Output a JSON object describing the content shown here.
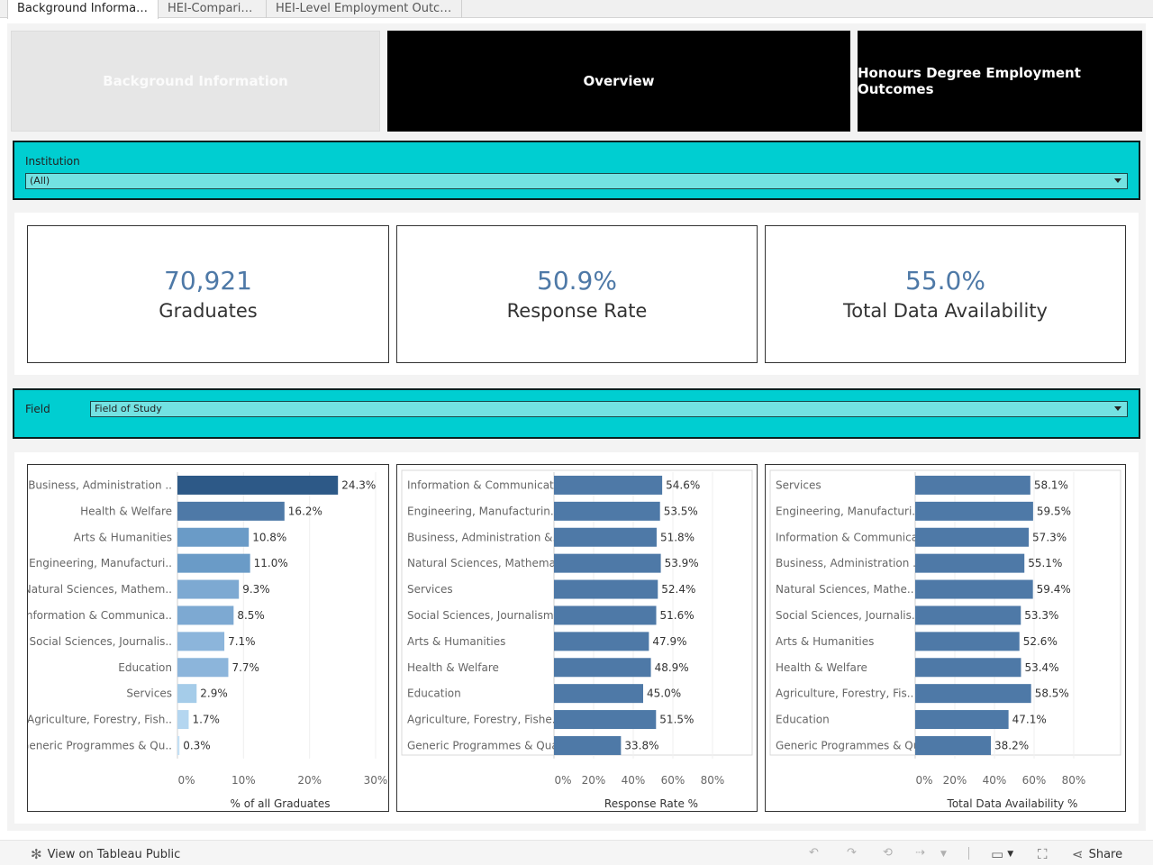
{
  "tabs": [
    {
      "label": "Background Information",
      "active": true
    },
    {
      "label": "HEI-Comparison",
      "active": false
    },
    {
      "label": "HEI-Level Employment Outco...",
      "active": false
    }
  ],
  "nav": {
    "background": "Background Information",
    "overview": "Overview",
    "honours": "Honours Degree Employment Outcomes"
  },
  "institution_filter": {
    "label": "Institution",
    "value": "(All)"
  },
  "kpis": {
    "graduates": {
      "value": "70,921",
      "label": "Graduates"
    },
    "response": {
      "value": "50.9%",
      "label": "Response Rate"
    },
    "availability": {
      "value": "55.0%",
      "label": "Total Data Availability"
    }
  },
  "field_filter": {
    "label": "Field",
    "value": "Field of Study"
  },
  "colors": {
    "teal": "#00ced1",
    "kpi_blue": "#4e79a7",
    "bar_blue": "#4e79a7"
  },
  "chart_data": [
    {
      "type": "bar",
      "orientation": "horizontal",
      "categories": [
        "Business, Administration ..",
        "Health & Welfare",
        "Arts & Humanities",
        "Engineering, Manufacturi..",
        "Natural Sciences, Mathem..",
        "Information & Communica..",
        "Social Sciences, Journalis..",
        "Education",
        "Services",
        "Agriculture, Forestry, Fish..",
        "Generic Programmes & Qu.."
      ],
      "values": [
        24.3,
        16.2,
        10.8,
        11.0,
        9.3,
        8.5,
        7.1,
        7.7,
        2.9,
        1.7,
        0.3
      ],
      "labels": [
        "24.3%",
        "16.2%",
        "10.8%",
        "11.0%",
        "9.3%",
        "8.5%",
        "7.1%",
        "7.7%",
        "2.9%",
        "1.7%",
        "0.3%"
      ],
      "xlabel": "% of all Graduates",
      "ticks": [
        "0%",
        "10%",
        "20%",
        "30%"
      ],
      "xlim": [
        0,
        30
      ],
      "color_by_value": true
    },
    {
      "type": "bar",
      "orientation": "horizontal",
      "categories": [
        "Information & Communicati..",
        "Engineering, Manufacturin..",
        "Business, Administration &..",
        "Natural Sciences, Mathema..",
        "Services",
        "Social Sciences, Journalism..",
        "Arts & Humanities",
        "Health & Welfare",
        "Education",
        "Agriculture, Forestry, Fishe..",
        "Generic Programmes & Qua.."
      ],
      "values": [
        54.6,
        53.5,
        51.8,
        53.9,
        52.4,
        51.6,
        47.9,
        48.9,
        45.0,
        51.5,
        33.8
      ],
      "labels": [
        "54.6%",
        "53.5%",
        "51.8%",
        "53.9%",
        "52.4%",
        "51.6%",
        "47.9%",
        "48.9%",
        "45.0%",
        "51.5%",
        "33.8%"
      ],
      "xlabel": "Response Rate %",
      "ticks": [
        "0%",
        "20%",
        "40%",
        "60%",
        "80%"
      ],
      "xlim": [
        0,
        100
      ]
    },
    {
      "type": "bar",
      "orientation": "horizontal",
      "categories": [
        "Services",
        "Engineering, Manufacturi..",
        "Information & Communica..",
        "Business, Administration ..",
        "Natural Sciences, Mathe..",
        "Social Sciences, Journalis..",
        "Arts & Humanities",
        "Health & Welfare",
        "Agriculture, Forestry, Fis..",
        "Education",
        "Generic Programmes & Qu.."
      ],
      "values": [
        58.1,
        59.5,
        57.3,
        55.1,
        59.4,
        53.3,
        52.6,
        53.4,
        58.5,
        47.1,
        38.2
      ],
      "labels": [
        "58.1%",
        "59.5%",
        "57.3%",
        "55.1%",
        "59.4%",
        "53.3%",
        "52.6%",
        "53.4%",
        "58.5%",
        "47.1%",
        "38.2%"
      ],
      "xlabel": "Total Data Availability %",
      "ticks": [
        "0%",
        "20%",
        "40%",
        "60%",
        "80%"
      ],
      "xlim": [
        0,
        100
      ]
    }
  ],
  "toolbar": {
    "view_label": "View on Tableau Public",
    "share_label": "Share"
  }
}
